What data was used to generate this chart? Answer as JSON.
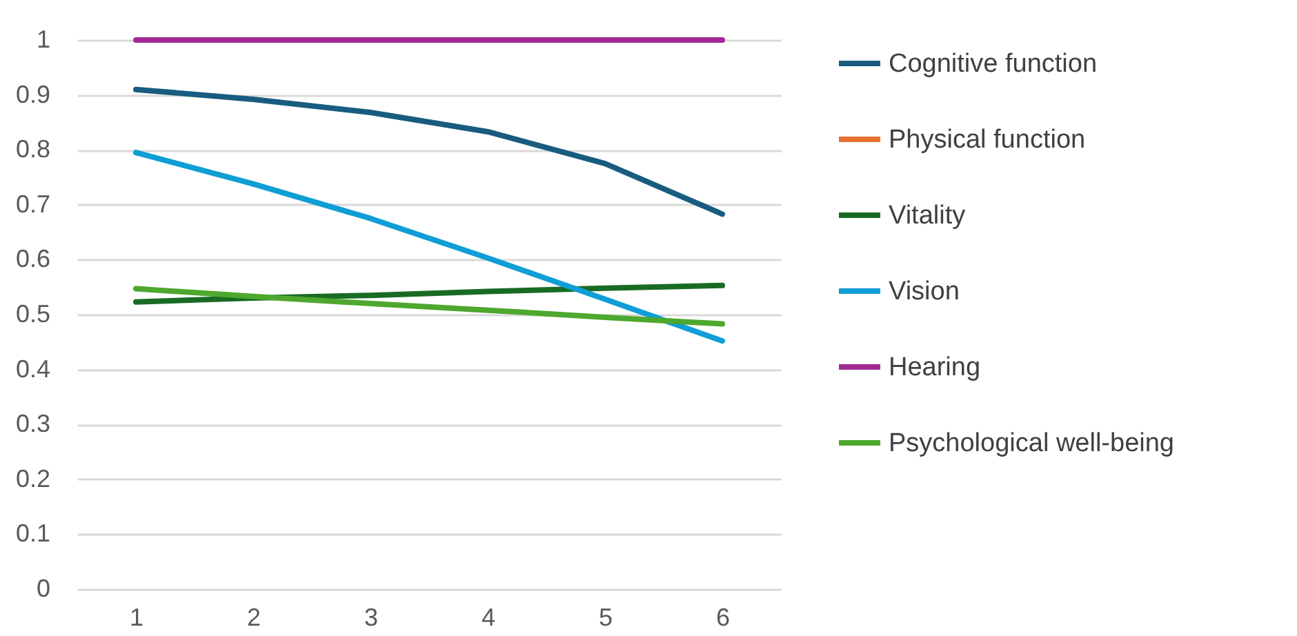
{
  "chart_data": {
    "type": "line",
    "categories": [
      "1",
      "2",
      "3",
      "4",
      "5",
      "6"
    ],
    "series": [
      {
        "name": "Cognitive function",
        "color": "#185c80",
        "values": [
          0.91,
          0.892,
          0.868,
          0.833,
          0.775,
          0.683
        ]
      },
      {
        "name": "Physical function",
        "color": "#e97132",
        "values": [
          null,
          null,
          null,
          null,
          null,
          null
        ]
      },
      {
        "name": "Vitality",
        "color": "#196b24",
        "values": [
          0.523,
          0.53,
          0.535,
          0.542,
          0.548,
          0.553
        ]
      },
      {
        "name": "Vision",
        "color": "#0f9ed5",
        "values": [
          0.795,
          0.738,
          0.675,
          0.603,
          0.528,
          0.452
        ]
      },
      {
        "name": "Hearing",
        "color": "#a02b93",
        "values": [
          1,
          1,
          1,
          1,
          1,
          1
        ]
      },
      {
        "name": "Psychological well-being",
        "color": "#4ea72e",
        "values": [
          0.547,
          0.533,
          0.52,
          0.508,
          0.495,
          0.483
        ]
      }
    ],
    "ylim": [
      0,
      1
    ],
    "yticks": [
      0,
      0.1,
      0.2,
      0.3,
      0.4,
      0.5,
      0.6,
      0.7,
      0.8,
      0.9,
      1
    ],
    "grid": "y",
    "legend": "right",
    "marker": "none",
    "line_style": "solid"
  }
}
